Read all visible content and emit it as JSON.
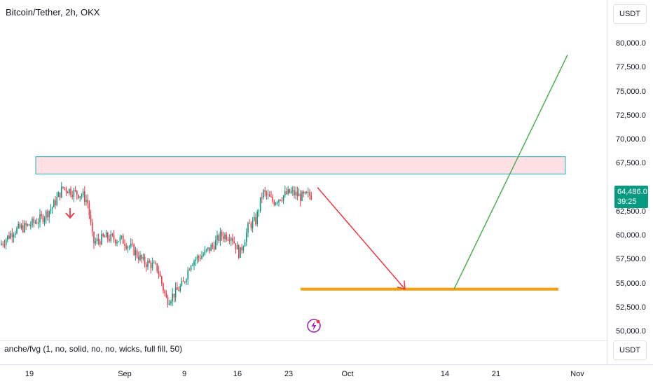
{
  "header": {
    "title": "Bitcoin/Tether, 2h, OKX"
  },
  "price_scale": {
    "currency_top": "USDT",
    "currency_bottom": "USDT",
    "ticks": [
      "80,000.0",
      "77,500.0",
      "75,000.0",
      "72,500.0",
      "70,000.0",
      "67,500.0",
      "62,500.0",
      "60,000.0",
      "57,500.0",
      "55,000.0",
      "52,500.0",
      "50,000.0"
    ],
    "last_price": "64,486.0",
    "countdown": "39:25"
  },
  "time_axis": {
    "labels": [
      "19",
      "Sep",
      "9",
      "16",
      "23",
      "Oct",
      "14",
      "21",
      "Nov"
    ]
  },
  "indicator": {
    "legend": "anche/fvg (1, no, solid, no, no, wicks, full fill, 50)"
  },
  "colors": {
    "up": "#089981",
    "down": "#f23645",
    "zone_fill": "#fde0e3",
    "zone_border": "#22b5c8",
    "support_line": "#f59e0b",
    "bearish_arrow": "#f23645",
    "bullish_line": "#4caf50",
    "price_tag": "#089981"
  },
  "drawings": {
    "resistance_zone": {
      "top": 68200,
      "bottom": 66400
    },
    "support_level": 54400,
    "projection_start_price": 65000,
    "projection_bottom_price": 54400,
    "projection_target_price": 78800
  },
  "icons": {
    "event_marker": "lightning-icon",
    "small_arrow": "arrow-down-icon"
  }
}
